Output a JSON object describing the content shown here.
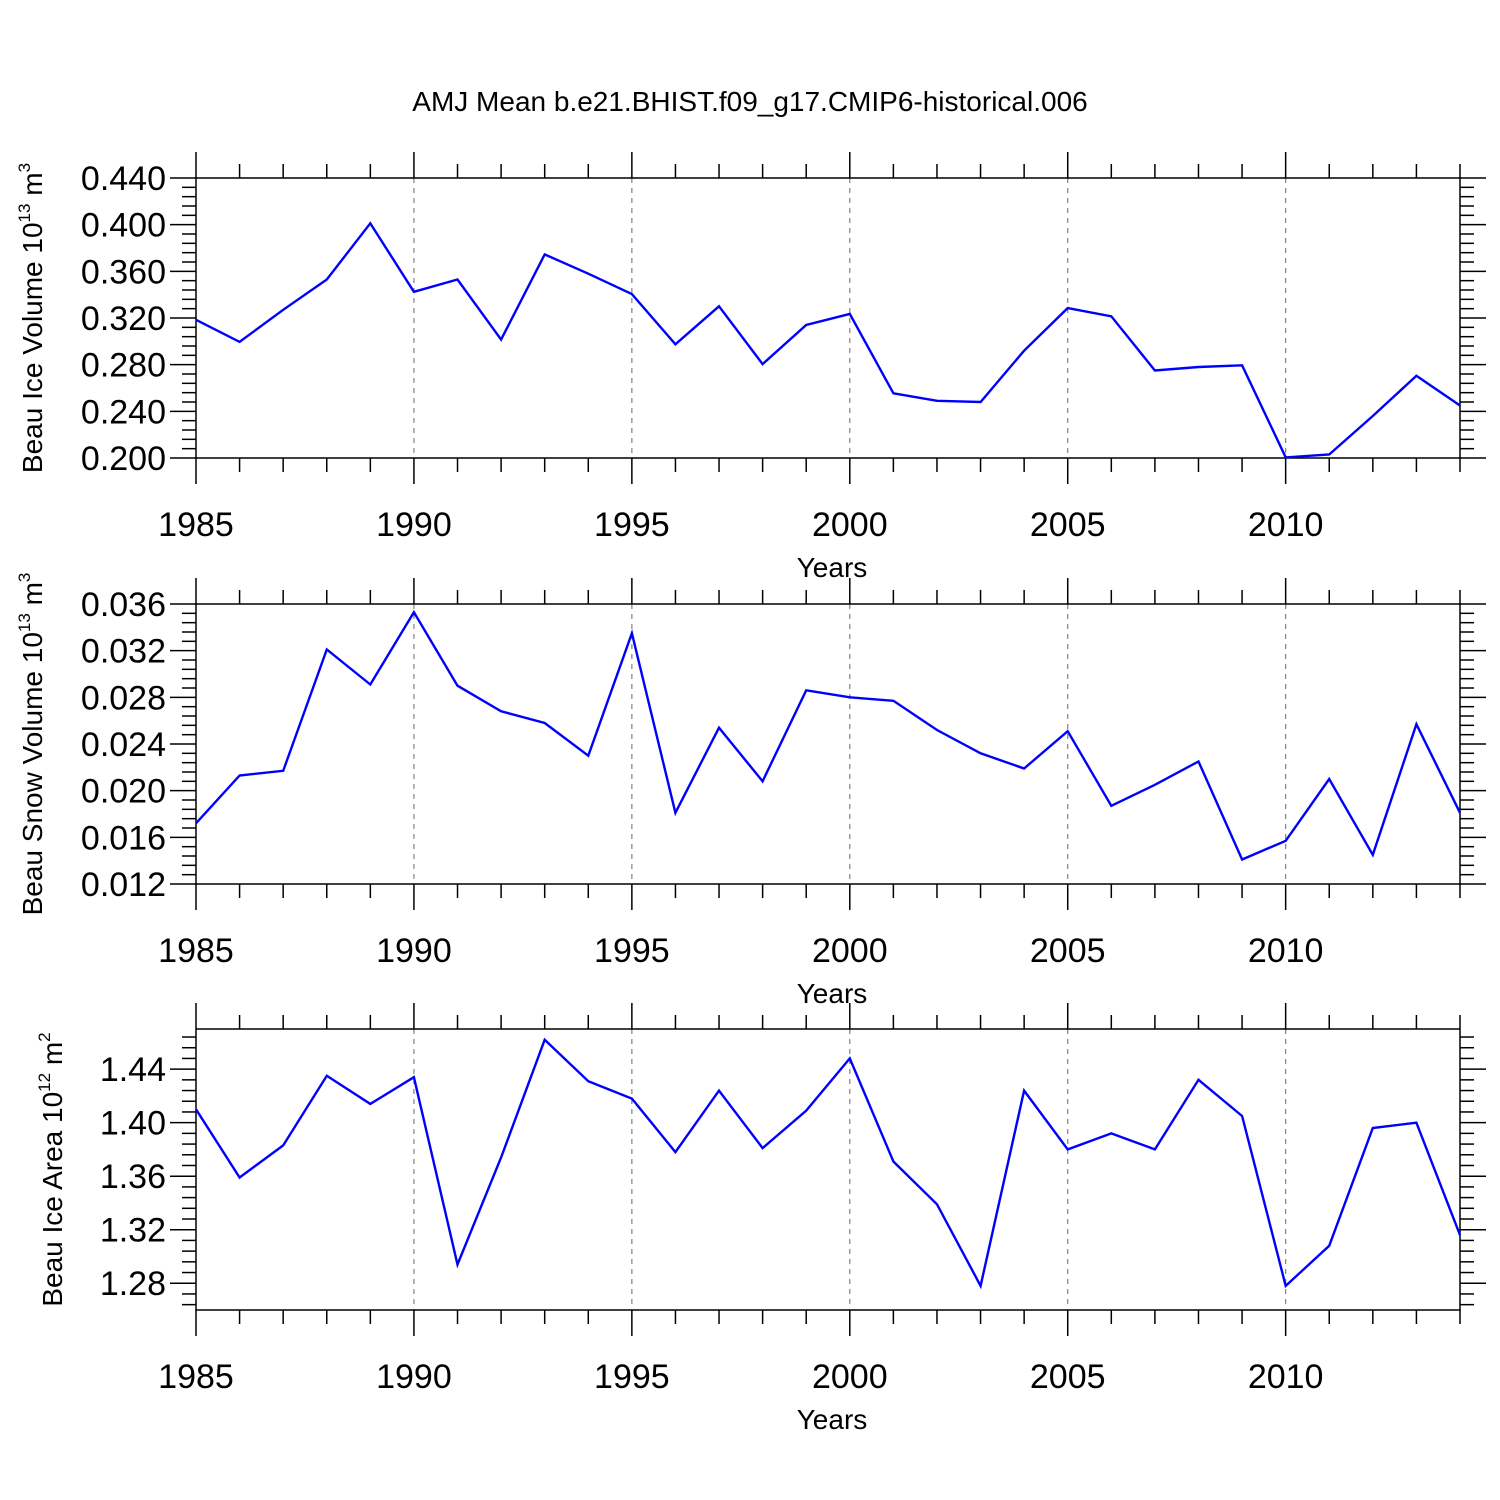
{
  "title": "AMJ Mean b.e21.BHIST.f09_g17.CMIP6-historical.006",
  "colors": {
    "line": "#0000ff",
    "axis": "#000000",
    "gridline": "#808080"
  },
  "chart_data": [
    {
      "type": "line",
      "xlabel": "Years",
      "ylabel": {
        "text": "Beau Ice Volume 10",
        "exponent": "13",
        "unit": " m",
        "unit_exponent": "3"
      },
      "xlim": [
        1985,
        2014
      ],
      "ylim": [
        0.2,
        0.44
      ],
      "xticks": [
        "1985",
        "1990",
        "1995",
        "2000",
        "2005",
        "2010"
      ],
      "yticks": [
        "0.200",
        "0.240",
        "0.280",
        "0.320",
        "0.360",
        "0.400",
        "0.440"
      ],
      "grid": "vertical dashed at labeled years",
      "x": [
        1985,
        1986,
        1987,
        1988,
        1989,
        1990,
        1991,
        1992,
        1993,
        1994,
        1995,
        1996,
        1997,
        1998,
        1999,
        2000,
        2001,
        2002,
        2003,
        2004,
        2005,
        2006,
        2007,
        2008,
        2009,
        2010,
        2011,
        2012,
        2013,
        2014
      ],
      "values": [
        0.3185,
        0.2995,
        0.327,
        0.353,
        0.4012,
        0.3425,
        0.353,
        0.3015,
        0.3745,
        0.358,
        0.3405,
        0.2975,
        0.33,
        0.2805,
        0.314,
        0.3235,
        0.2555,
        0.249,
        0.248,
        0.292,
        0.3285,
        0.3215,
        0.275,
        0.278,
        0.2795,
        0.2005,
        0.203,
        0.236,
        0.2705,
        0.245
      ]
    },
    {
      "type": "line",
      "xlabel": "Years",
      "ylabel": {
        "text": "Beau Snow Volume 10",
        "exponent": "13",
        "unit": " m",
        "unit_exponent": "3"
      },
      "xlim": [
        1985,
        2014
      ],
      "ylim": [
        0.012,
        0.036
      ],
      "xticks": [
        "1985",
        "1990",
        "1995",
        "2000",
        "2005",
        "2010"
      ],
      "yticks": [
        "0.012",
        "0.016",
        "0.020",
        "0.024",
        "0.028",
        "0.032",
        "0.036"
      ],
      "grid": "vertical dashed at labeled years",
      "x": [
        1985,
        1986,
        1987,
        1988,
        1989,
        1990,
        1991,
        1992,
        1993,
        1994,
        1995,
        1996,
        1997,
        1998,
        1999,
        2000,
        2001,
        2002,
        2003,
        2004,
        2005,
        2006,
        2007,
        2008,
        2009,
        2010,
        2011,
        2012,
        2013,
        2014
      ],
      "values": [
        0.0172,
        0.0213,
        0.0217,
        0.0321,
        0.0291,
        0.0353,
        0.029,
        0.0268,
        0.0258,
        0.023,
        0.0335,
        0.0181,
        0.0254,
        0.0208,
        0.0286,
        0.028,
        0.0277,
        0.0252,
        0.0232,
        0.0219,
        0.0251,
        0.0187,
        0.0205,
        0.0225,
        0.0141,
        0.0157,
        0.021,
        0.0145,
        0.0257,
        0.0181
      ]
    },
    {
      "type": "line",
      "xlabel": "Years",
      "ylabel": {
        "text": "Beau Ice Area 10",
        "exponent": "12",
        "unit": " m",
        "unit_exponent": "2"
      },
      "xlim": [
        1985,
        2014
      ],
      "ylim": [
        1.26,
        1.47
      ],
      "xticks": [
        "1985",
        "1990",
        "1995",
        "2000",
        "2005",
        "2010"
      ],
      "yticks": [
        "1.28",
        "1.32",
        "1.36",
        "1.40",
        "1.44"
      ],
      "grid": "vertical dashed at labeled years",
      "x": [
        1985,
        1986,
        1987,
        1988,
        1989,
        1990,
        1991,
        1992,
        1993,
        1994,
        1995,
        1996,
        1997,
        1998,
        1999,
        2000,
        2001,
        2002,
        2003,
        2004,
        2005,
        2006,
        2007,
        2008,
        2009,
        2010,
        2011,
        2012,
        2013,
        2014
      ],
      "values": [
        1.41,
        1.359,
        1.383,
        1.435,
        1.414,
        1.434,
        1.294,
        1.374,
        1.462,
        1.431,
        1.418,
        1.378,
        1.424,
        1.381,
        1.409,
        1.448,
        1.371,
        1.339,
        1.278,
        1.424,
        1.38,
        1.392,
        1.38,
        1.432,
        1.405,
        1.278,
        1.308,
        1.396,
        1.4,
        1.316
      ]
    }
  ]
}
